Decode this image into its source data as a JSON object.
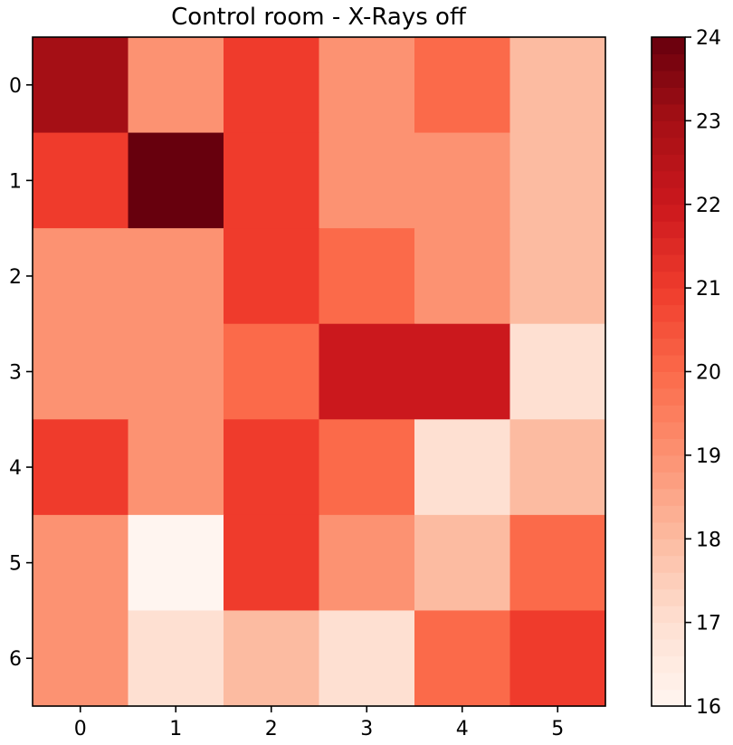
{
  "chart_data": {
    "type": "heatmap",
    "title": "Control room - X-Rays off",
    "xlabel": "",
    "ylabel": "",
    "x_categories": [
      "0",
      "1",
      "2",
      "3",
      "4",
      "5"
    ],
    "y_categories": [
      "0",
      "1",
      "2",
      "3",
      "4",
      "5",
      "6"
    ],
    "values": [
      [
        23.0,
        19.0,
        21.0,
        19.0,
        20.0,
        18.0
      ],
      [
        21.0,
        24.0,
        21.0,
        19.0,
        19.0,
        18.0
      ],
      [
        19.0,
        19.0,
        21.0,
        20.0,
        19.0,
        18.0
      ],
      [
        19.0,
        19.0,
        20.0,
        22.0,
        22.0,
        17.0
      ],
      [
        21.0,
        19.0,
        21.0,
        20.0,
        17.0,
        18.0
      ],
      [
        19.0,
        16.0,
        21.0,
        19.0,
        18.0,
        20.0
      ],
      [
        19.0,
        17.0,
        18.0,
        17.0,
        20.0,
        21.0
      ]
    ],
    "colormap": "Reds",
    "colorbar": {
      "range": [
        16,
        24
      ],
      "ticks": [
        "16",
        "17",
        "18",
        "19",
        "20",
        "21",
        "22",
        "23",
        "24"
      ],
      "levels": 40
    },
    "grid": false,
    "legend": "none"
  }
}
